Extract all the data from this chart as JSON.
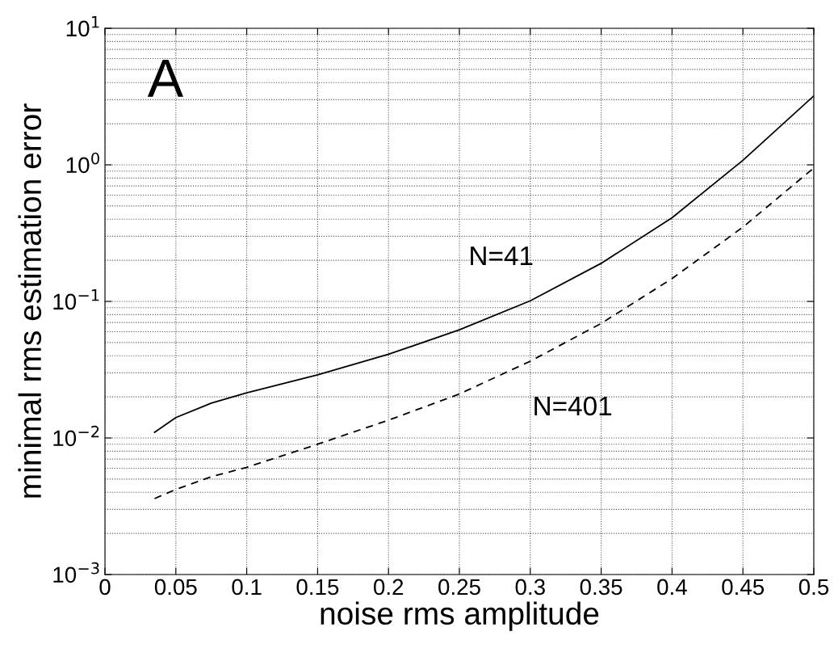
{
  "chart_data": {
    "type": "line",
    "xlabel": "noise rms amplitude",
    "ylabel": "minimal rms estimation error",
    "log": "y",
    "grid": true,
    "xlim": [
      0,
      0.5
    ],
    "xticks": [
      0,
      0.05,
      0.1,
      0.15,
      0.2,
      0.25,
      0.3,
      0.35,
      0.4,
      0.45,
      0.5
    ],
    "ylim": [
      0.001,
      10
    ],
    "yticks": [
      {
        "value": 0.001,
        "label": "10$^{−3}$"
      },
      {
        "value": 0.01,
        "label": "10$^{−2}$"
      },
      {
        "value": 0.1,
        "label": "10$^{−1}$"
      },
      {
        "value": 1,
        "label": "10$^{0}$"
      },
      {
        "value": 10,
        "label": "10$^{1}$"
      }
    ],
    "x": [
      0.035,
      0.05,
      0.075,
      0.1,
      0.15,
      0.2,
      0.25,
      0.3,
      0.35,
      0.4,
      0.45,
      0.5
    ],
    "series": [
      {
        "name": "N=41",
        "color": "#000000",
        "line_style": "solid",
        "values": [
          0.011,
          0.0141,
          0.018,
          0.0214,
          0.029,
          0.041,
          0.062,
          0.101,
          0.19,
          0.41,
          1.08,
          3.2
        ]
      },
      {
        "name": "N=401",
        "color": "#000000",
        "line_style": "dashed",
        "values": [
          0.0036,
          0.0042,
          0.0052,
          0.0061,
          0.009,
          0.0135,
          0.021,
          0.0365,
          0.069,
          0.147,
          0.35,
          0.95
        ]
      }
    ],
    "annotations": [
      "A"
    ]
  }
}
